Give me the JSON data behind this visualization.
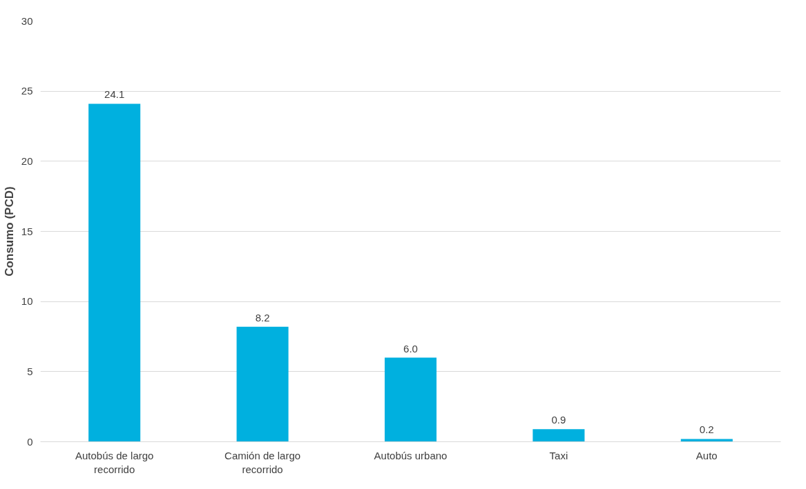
{
  "chart_data": {
    "type": "bar",
    "ylabel": "Consumo (PCD)",
    "categories": [
      "Autobús de largo recorrido",
      "Camión de largo recorrido",
      "Autobús urbano",
      "Taxi",
      "Auto"
    ],
    "values": [
      24.1,
      8.2,
      6.0,
      0.9,
      0.2
    ],
    "value_labels": [
      "24.1",
      "8.2",
      "6.0",
      "0.9",
      "0.2"
    ],
    "color": "#00b0df",
    "ylim": [
      0,
      30
    ],
    "yticks": [
      0,
      5,
      10,
      15,
      20,
      25,
      30
    ],
    "grid": "y"
  }
}
